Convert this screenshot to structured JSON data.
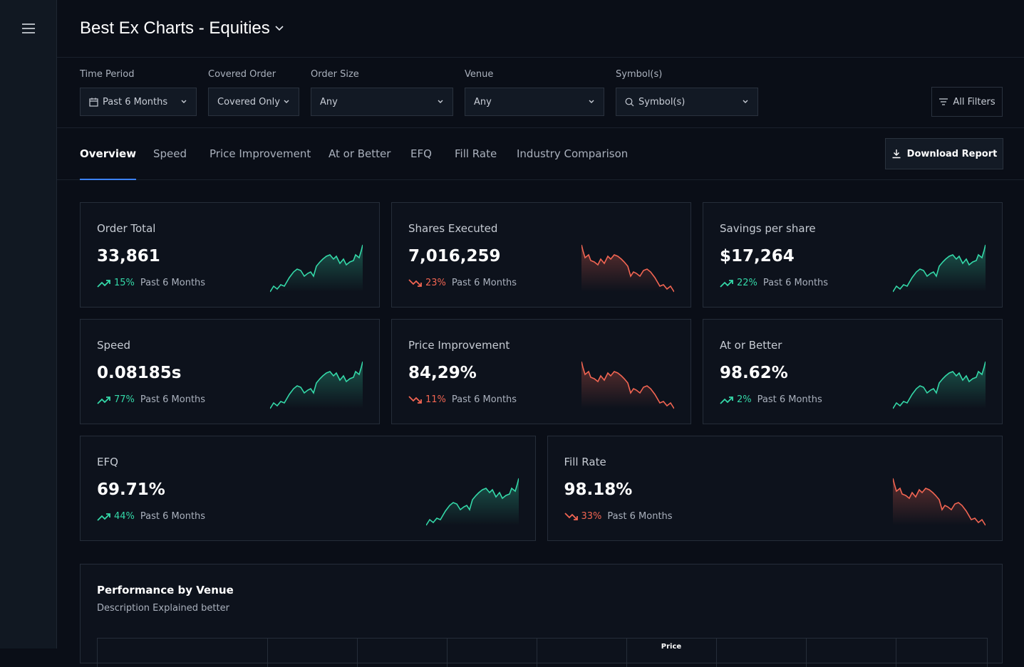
{
  "header": {
    "title": "Best Ex Charts - Equities"
  },
  "filters": [
    {
      "label": "Time Period",
      "value": "Past 6 Months"
    },
    {
      "label": "Covered Order",
      "value": "Covered Only"
    },
    {
      "label": "Order Size",
      "value": "Any"
    },
    {
      "label": "Venue",
      "value": "Any"
    },
    {
      "label": "Symbol(s)",
      "value": "Symbol(s)"
    }
  ],
  "all_filters": "All Filters",
  "tabs": [
    "Overview",
    "Speed",
    "Price Improvement",
    "At or Better",
    "EFQ",
    "Fill Rate",
    "Industry Comparison"
  ],
  "active_tab": 0,
  "download": "Download Report",
  "cards": [
    {
      "title": "Order Total",
      "value": "33,861",
      "change": "15%",
      "period": "Past 6 Months",
      "trend": "up"
    },
    {
      "title": "Shares Executed",
      "value": "7,016,259",
      "change": "23%",
      "period": "Past 6 Months",
      "trend": "down"
    },
    {
      "title": "Savings per share",
      "value": "$17,264",
      "change": "22%",
      "period": "Past 6 Months",
      "trend": "up"
    },
    {
      "title": "Speed",
      "value": "0.08185s",
      "change": "77%",
      "period": "Past 6 Months",
      "trend": "up"
    },
    {
      "title": "Price Improvement",
      "value": "84,29%",
      "change": "11%",
      "period": "Past 6 Months",
      "trend": "down"
    },
    {
      "title": "At or Better",
      "value": "98.62%",
      "change": "2%",
      "period": "Past 6 Months",
      "trend": "up"
    },
    {
      "title": "EFQ",
      "value": "69.71%",
      "change": "44%",
      "period": "Past 6 Months",
      "trend": "up"
    },
    {
      "title": "Fill Rate",
      "value": "98.18%",
      "change": "33%",
      "period": "Past 6 Months",
      "trend": "down"
    }
  ],
  "performance": {
    "title": "Performance by Venue",
    "description": "Description Explained better",
    "table_header_partial": "Price"
  }
}
